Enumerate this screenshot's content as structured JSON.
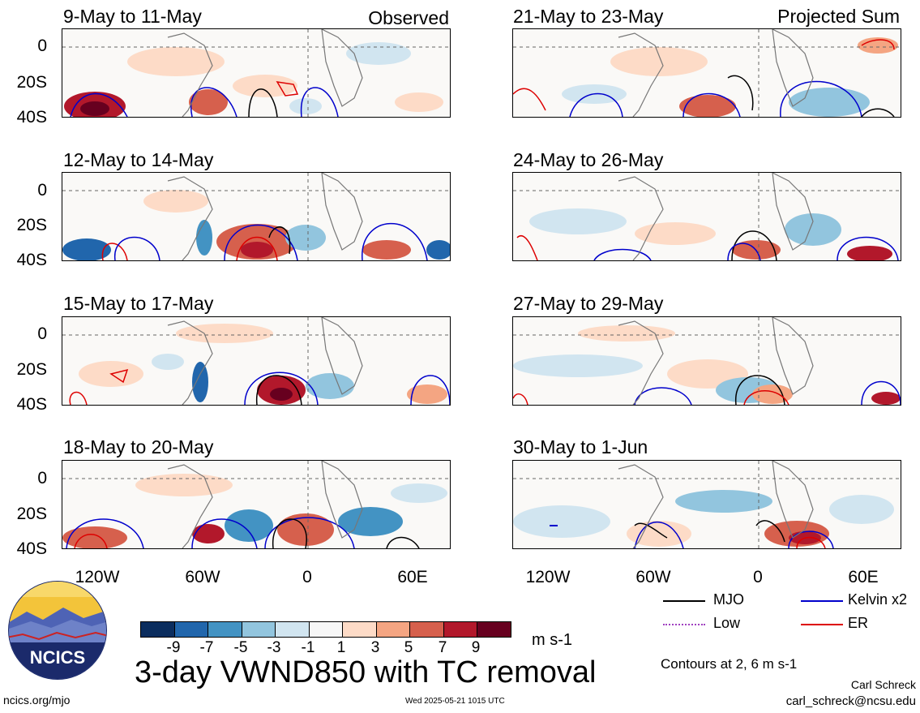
{
  "panels_left": [
    {
      "title": "9-May to 11-May",
      "tag": "Observed"
    },
    {
      "title": "12-May to 14-May",
      "tag": ""
    },
    {
      "title": "15-May to 17-May",
      "tag": ""
    },
    {
      "title": "18-May to 20-May",
      "tag": ""
    }
  ],
  "panels_right": [
    {
      "title": "21-May to 23-May",
      "tag": "Projected Sum"
    },
    {
      "title": "24-May to 26-May",
      "tag": ""
    },
    {
      "title": "27-May to 29-May",
      "tag": ""
    },
    {
      "title": "30-May to 1-Jun",
      "tag": ""
    }
  ],
  "lat_labels": [
    "0",
    "20S",
    "40S"
  ],
  "lon_labels": [
    "120W",
    "60W",
    "0",
    "60E"
  ],
  "legend": {
    "mjo": "MJO",
    "low": "Low",
    "kelvin": "Kelvin x2",
    "er": "ER",
    "contours_note": "Contours at 2, 6 m s-1"
  },
  "legend_colors": {
    "mjo": "#000000",
    "low": "#a040c0",
    "kelvin": "#0000cc",
    "er": "#dd0000"
  },
  "colorbar": {
    "labels": [
      "-9",
      "-7",
      "-5",
      "-3",
      "-1",
      "1",
      "3",
      "5",
      "7",
      "9"
    ],
    "colors": [
      "#0b2d5e",
      "#2166ac",
      "#4393c3",
      "#92c5de",
      "#d1e5f0",
      "#f7f7f7",
      "#fddbc7",
      "#f4a582",
      "#d6604d",
      "#b2182b",
      "#67001f"
    ],
    "units": "m s-1"
  },
  "main_title": "3-day VWND850 with TC removal",
  "logo_text": "NCICS",
  "footer": {
    "left": "ncics.org/mjo",
    "center": "Wed 2025-05-21 1015 UTC",
    "author": "Carl Schreck",
    "email": "carl_schreck@ncsu.edu"
  }
}
